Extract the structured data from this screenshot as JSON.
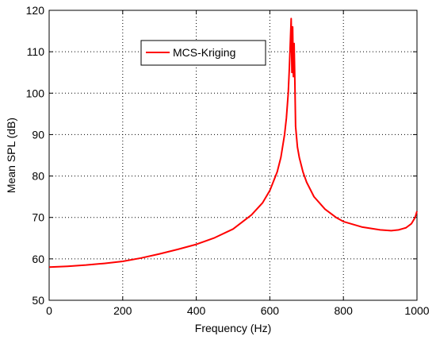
{
  "chart_data": {
    "type": "line",
    "title": "",
    "xlabel": "Frequency (Hz)",
    "ylabel": "Mean SPL (dB)",
    "xlim": [
      0,
      1000
    ],
    "ylim": [
      50,
      120
    ],
    "x_ticks": [
      0,
      200,
      400,
      600,
      800,
      1000
    ],
    "y_ticks": [
      50,
      60,
      70,
      80,
      90,
      100,
      110,
      120
    ],
    "grid": true,
    "legend_position": "top-left",
    "series": [
      {
        "name": "MCS-Kriging",
        "color": "#ff0000",
        "x": [
          0,
          50,
          100,
          150,
          200,
          250,
          300,
          350,
          400,
          450,
          500,
          550,
          580,
          600,
          620,
          630,
          640,
          645,
          650,
          653,
          656,
          658,
          660,
          662,
          664,
          666,
          668,
          670,
          675,
          680,
          690,
          700,
          720,
          750,
          780,
          800,
          850,
          900,
          930,
          950,
          970,
          985,
          995,
          1000
        ],
        "y": [
          58,
          58.2,
          58.5,
          58.9,
          59.4,
          60.2,
          61.2,
          62.3,
          63.5,
          65.1,
          67.2,
          70.6,
          73.5,
          76.5,
          81,
          84.5,
          90,
          94,
          100,
          106,
          113,
          118,
          105,
          116,
          104,
          112,
          103,
          92,
          87,
          84.5,
          81,
          78.5,
          75,
          72,
          70,
          69,
          67.7,
          67,
          66.8,
          67,
          67.5,
          68.5,
          70,
          71.5
        ]
      }
    ]
  }
}
